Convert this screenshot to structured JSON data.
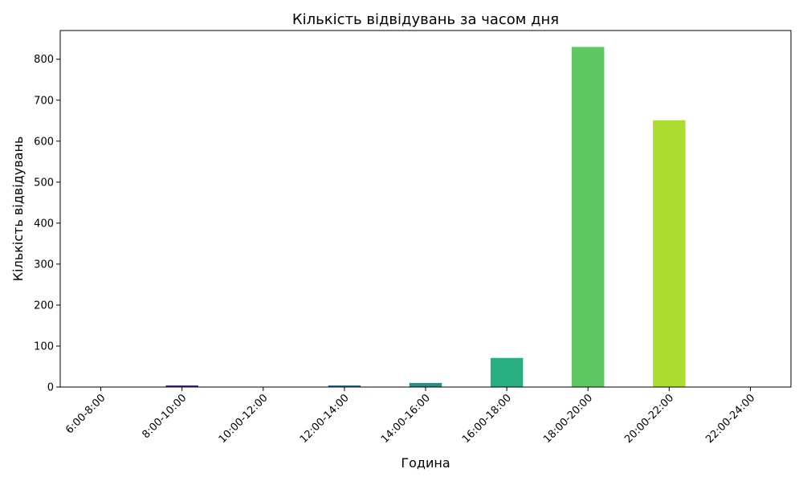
{
  "chart_data": {
    "type": "bar",
    "title": "Кількість відвідувань за часом дня",
    "xlabel": "Година",
    "ylabel": "Кількість відвідувань",
    "categories": [
      "6:00-8:00",
      "8:00-10:00",
      "10:00-12:00",
      "12:00-14:00",
      "14:00-16:00",
      "16:00-18:00",
      "18:00-20:00",
      "20:00-22:00",
      "22:00-24:00"
    ],
    "values": [
      0,
      4,
      0,
      4,
      10,
      71,
      830,
      651,
      0
    ],
    "colors": [
      "#440154",
      "#472d7b",
      "#3b528b",
      "#2c728e",
      "#21918c",
      "#28ae80",
      "#5ec962",
      "#addc30",
      "#fde725"
    ],
    "ylim": [
      0,
      870
    ],
    "yticks": [
      0,
      100,
      200,
      300,
      400,
      500,
      600,
      700,
      800
    ],
    "grid": false,
    "legend": "none"
  }
}
